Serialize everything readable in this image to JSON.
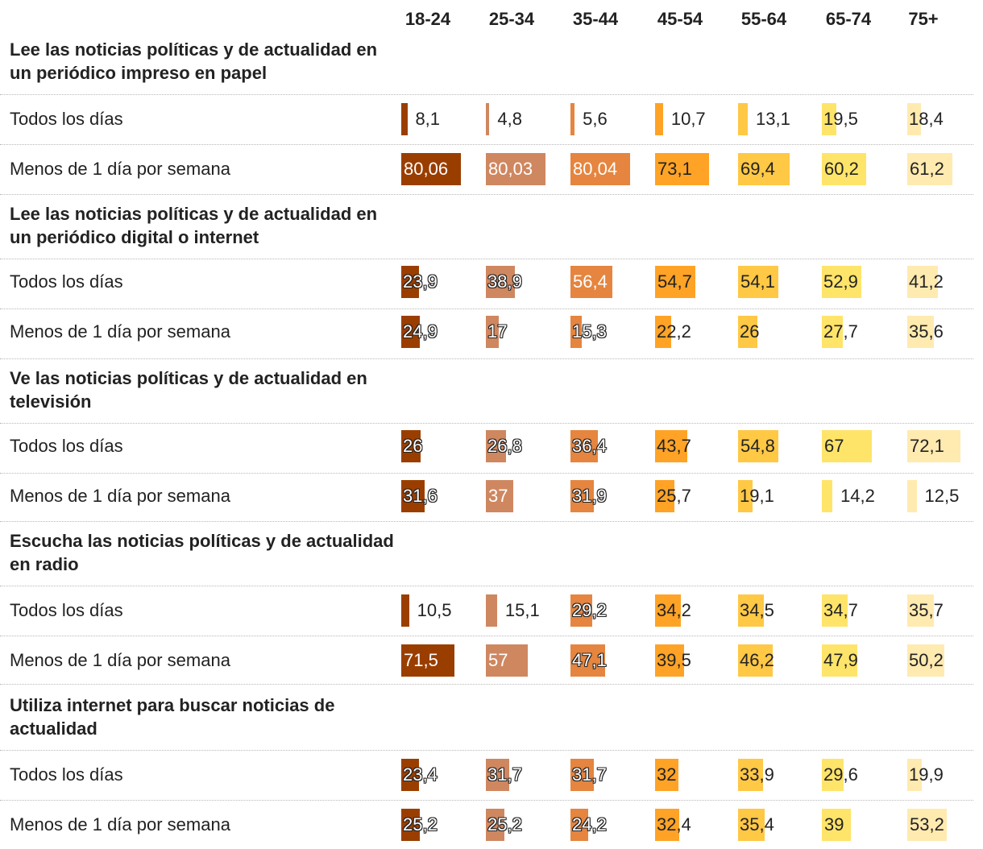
{
  "chart_data": {
    "type": "table",
    "title": "",
    "columns": [
      "18-24",
      "25-34",
      "35-44",
      "45-54",
      "55-64",
      "65-74",
      "75+"
    ],
    "colors": [
      "#9a3e00",
      "#cf8760",
      "#e5853f",
      "#ffa326",
      "#ffc845",
      "#ffe46a",
      "#ffeab0"
    ],
    "max_value": 100,
    "groups": [
      {
        "title": "Lee las noticias políticas y de actualidad en un periódico impreso en papel",
        "rows": [
          {
            "label": "Todos los días",
            "values": [
              8.1,
              4.8,
              5.6,
              10.7,
              13.1,
              19.5,
              18.4
            ],
            "display": [
              "8,1",
              "4,8",
              "5,6",
              "10,7",
              "13,1",
              "19,5",
              "18,4"
            ]
          },
          {
            "label": "Menos de 1 día por semana",
            "values": [
              80.06,
              80.03,
              80.04,
              73.1,
              69.4,
              60.2,
              61.2
            ],
            "display": [
              "80,06",
              "80,03",
              "80,04",
              "73,1",
              "69,4",
              "60,2",
              "61,2"
            ]
          }
        ]
      },
      {
        "title": "Lee las noticias políticas y de actualidad en un periódico digital o internet",
        "rows": [
          {
            "label": "Todos los días",
            "values": [
              23.9,
              38.9,
              56.4,
              54.7,
              54.1,
              52.9,
              41.2
            ],
            "display": [
              "23,9",
              "38,9",
              "56,4",
              "54,7",
              "54,1",
              "52,9",
              "41,2"
            ]
          },
          {
            "label": "Menos de 1 día por semana",
            "values": [
              24.9,
              17,
              15.3,
              22.2,
              26,
              27.7,
              35.6
            ],
            "display": [
              "24,9",
              "17",
              "15,3",
              "22,2",
              "26",
              "27,7",
              "35,6"
            ]
          }
        ]
      },
      {
        "title": "Ve las noticias políticas y de actualidad en televisión",
        "rows": [
          {
            "label": "Todos los días",
            "values": [
              26,
              26.8,
              36.4,
              43.7,
              54.8,
              67,
              72.1
            ],
            "display": [
              "26",
              "26,8",
              "36,4",
              "43,7",
              "54,8",
              "67",
              "72,1"
            ]
          },
          {
            "label": "Menos de 1 día por semana",
            "values": [
              31.6,
              37,
              31.9,
              25.7,
              19.1,
              14.2,
              12.5
            ],
            "display": [
              "31,6",
              "37",
              "31,9",
              "25,7",
              "19,1",
              "14,2",
              "12,5"
            ]
          }
        ]
      },
      {
        "title": "Escucha las noticias políticas y de actualidad en radio",
        "rows": [
          {
            "label": "Todos los días",
            "values": [
              10.5,
              15.1,
              29.2,
              34.2,
              34.5,
              34.7,
              35.7
            ],
            "display": [
              "10,5",
              "15,1",
              "29,2",
              "34,2",
              "34,5",
              "34,7",
              "35,7"
            ]
          },
          {
            "label": "Menos de 1 día por semana",
            "values": [
              71.5,
              57,
              47.1,
              39.5,
              46.2,
              47.9,
              50.2
            ],
            "display": [
              "71,5",
              "57",
              "47,1",
              "39,5",
              "46,2",
              "47,9",
              "50,2"
            ]
          }
        ]
      },
      {
        "title": "Utiliza internet para buscar noticias de actualidad",
        "rows": [
          {
            "label": "Todos los días",
            "values": [
              23.4,
              31.7,
              31.7,
              32,
              33.9,
              29.6,
              19.9
            ],
            "display": [
              "23,4",
              "31,7",
              "31,7",
              "32",
              "33,9",
              "29,6",
              "19,9"
            ]
          },
          {
            "label": "Menos de 1 día por semana",
            "values": [
              25.2,
              25.2,
              24.2,
              32.4,
              35.4,
              39,
              53.2
            ],
            "display": [
              "25,2",
              "25,2",
              "24,2",
              "32,4",
              "35,4",
              "39",
              "53,2"
            ]
          }
        ]
      }
    ]
  }
}
